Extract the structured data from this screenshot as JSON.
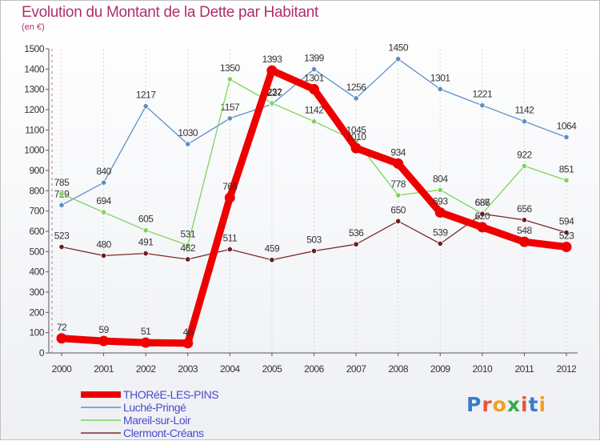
{
  "header": {
    "title": "Evolution du Montant de la Dette par Habitant",
    "subtitle": "(en €)"
  },
  "logo": {
    "text": "Proxiti",
    "letter_colors": [
      "#3a7cc9",
      "#e8553a",
      "#f0a01e",
      "#3aa84e",
      "#e8553a",
      "#3a7cc9",
      "#f0a01e"
    ]
  },
  "chart_data": {
    "type": "line",
    "title": "Evolution du Montant de la Dette par Habitant",
    "subtitle": "(en €)",
    "x": [
      "2000",
      "2001",
      "2002",
      "2003",
      "2004",
      "2005",
      "2006",
      "2007",
      "2008",
      "2009",
      "2010",
      "2011",
      "2012"
    ],
    "ylim": [
      0,
      1500
    ],
    "yticks": [
      0,
      100,
      200,
      300,
      400,
      500,
      600,
      700,
      800,
      900,
      1000,
      1100,
      1200,
      1300,
      1400,
      1500
    ],
    "grid": "vertical",
    "legend_position": "bottom-left",
    "series": [
      {
        "name": "THORéE-LES-PINS",
        "color": "#ee0000",
        "marker_fill": "#ee0000",
        "width": "thick",
        "values": [
          72,
          59,
          51,
          48,
          766,
          1393,
          1301,
          1010,
          934,
          693,
          620,
          548,
          523
        ]
      },
      {
        "name": "Luché-Pringé",
        "color": "#5b8fc7",
        "marker_fill": "#5b8fc7",
        "width": "thin",
        "values": [
          729,
          840,
          1217,
          1030,
          1157,
          1227,
          1399,
          1256,
          1450,
          1301,
          1221,
          1142,
          1064
        ]
      },
      {
        "name": "Mareil-sur-Loir",
        "color": "#7ed45a",
        "marker_fill": "#7ed45a",
        "width": "thin",
        "values": [
          785,
          694,
          605,
          531,
          1350,
          1232,
          1142,
          1045,
          778,
          804,
          687,
          922,
          851
        ]
      },
      {
        "name": "Clermont-Créans",
        "color": "#7a2a2a",
        "marker_fill": "#6a1e1e",
        "width": "thin",
        "values": [
          523,
          480,
          491,
          462,
          511,
          459,
          503,
          536,
          650,
          539,
          686,
          656,
          594
        ]
      }
    ]
  }
}
